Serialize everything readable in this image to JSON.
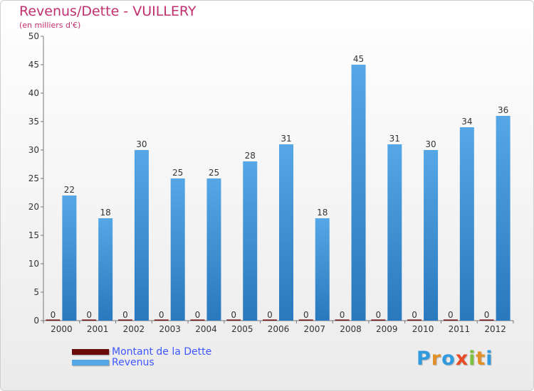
{
  "colors": {
    "title": "#c0306f",
    "debt": "#6b0a0a",
    "revenue": "#55a7e6",
    "revenue_dark": "#2a78bd",
    "legend_text": "#3f56ff"
  },
  "chart_data": {
    "type": "bar",
    "title": "Revenus/Dette - VUILLERY",
    "subtitle": "(en milliers d'€)",
    "xlabel": "",
    "ylabel": "",
    "ylim": [
      0,
      50
    ],
    "yticks": [
      0,
      5,
      10,
      15,
      20,
      25,
      30,
      35,
      40,
      45,
      50
    ],
    "grid": false,
    "legend_position": "bottom-left",
    "categories": [
      "2000",
      "2001",
      "2002",
      "2003",
      "2004",
      "2005",
      "2006",
      "2007",
      "2008",
      "2009",
      "2010",
      "2011",
      "2012"
    ],
    "series": [
      {
        "name": "Montant de la Dette",
        "values": [
          0,
          0,
          0,
          0,
          0,
          0,
          0,
          0,
          0,
          0,
          0,
          0,
          0
        ]
      },
      {
        "name": "Revenus",
        "values": [
          22,
          18,
          30,
          25,
          25,
          28,
          31,
          18,
          45,
          31,
          30,
          34,
          36
        ]
      }
    ]
  },
  "logo": {
    "letters": [
      "P",
      "r",
      "o",
      "x",
      "i",
      "t",
      "i"
    ],
    "colors": [
      "#2f9ae0",
      "#e2902a",
      "#2f9ae0",
      "#e84a26",
      "#7cc23f",
      "#e2902a",
      "#2f9ae0"
    ]
  }
}
